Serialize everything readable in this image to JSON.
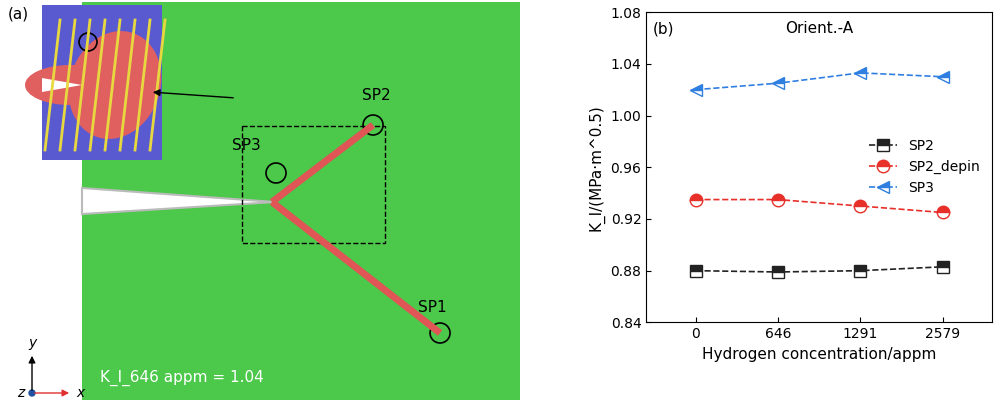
{
  "panel_a": {
    "label": "(a)",
    "slip_labels": [
      "SP1",
      "SP2",
      "SP3"
    ],
    "stress_intensity_text": "K_I_646 appm = 1.04",
    "axis_labels": [
      "x",
      "y",
      "z"
    ]
  },
  "chart_data": {
    "type": "line",
    "annotations": [
      "(b)",
      "Orient.-A"
    ],
    "x_label": "Hydrogen concentration/appm",
    "y_label": "K_I/(MPa·m^0.5)",
    "categories": [
      "0",
      "646",
      "1291",
      "2579"
    ],
    "series": [
      {
        "name": "SP2",
        "color": "#222222",
        "marker": "square",
        "line_style": "dashed",
        "values": [
          0.88,
          0.879,
          0.88,
          0.883
        ]
      },
      {
        "name": "SP2_depin",
        "color": "#e8302a",
        "marker": "circle",
        "line_style": "dashed",
        "values": [
          0.935,
          0.935,
          0.93,
          0.925
        ]
      },
      {
        "name": "SP3",
        "color": "#2f7fe0",
        "marker": "triangle_left",
        "line_style": "dashed",
        "values": [
          1.02,
          1.025,
          1.033,
          1.03
        ]
      }
    ],
    "ylim": [
      0.84,
      1.08
    ],
    "yticks": [
      0.84,
      0.88,
      0.92,
      0.96,
      {
        "value": 1.0,
        "label": "1.00"
      },
      1.04,
      1.08
    ],
    "legend": "center right",
    "grid": false
  }
}
